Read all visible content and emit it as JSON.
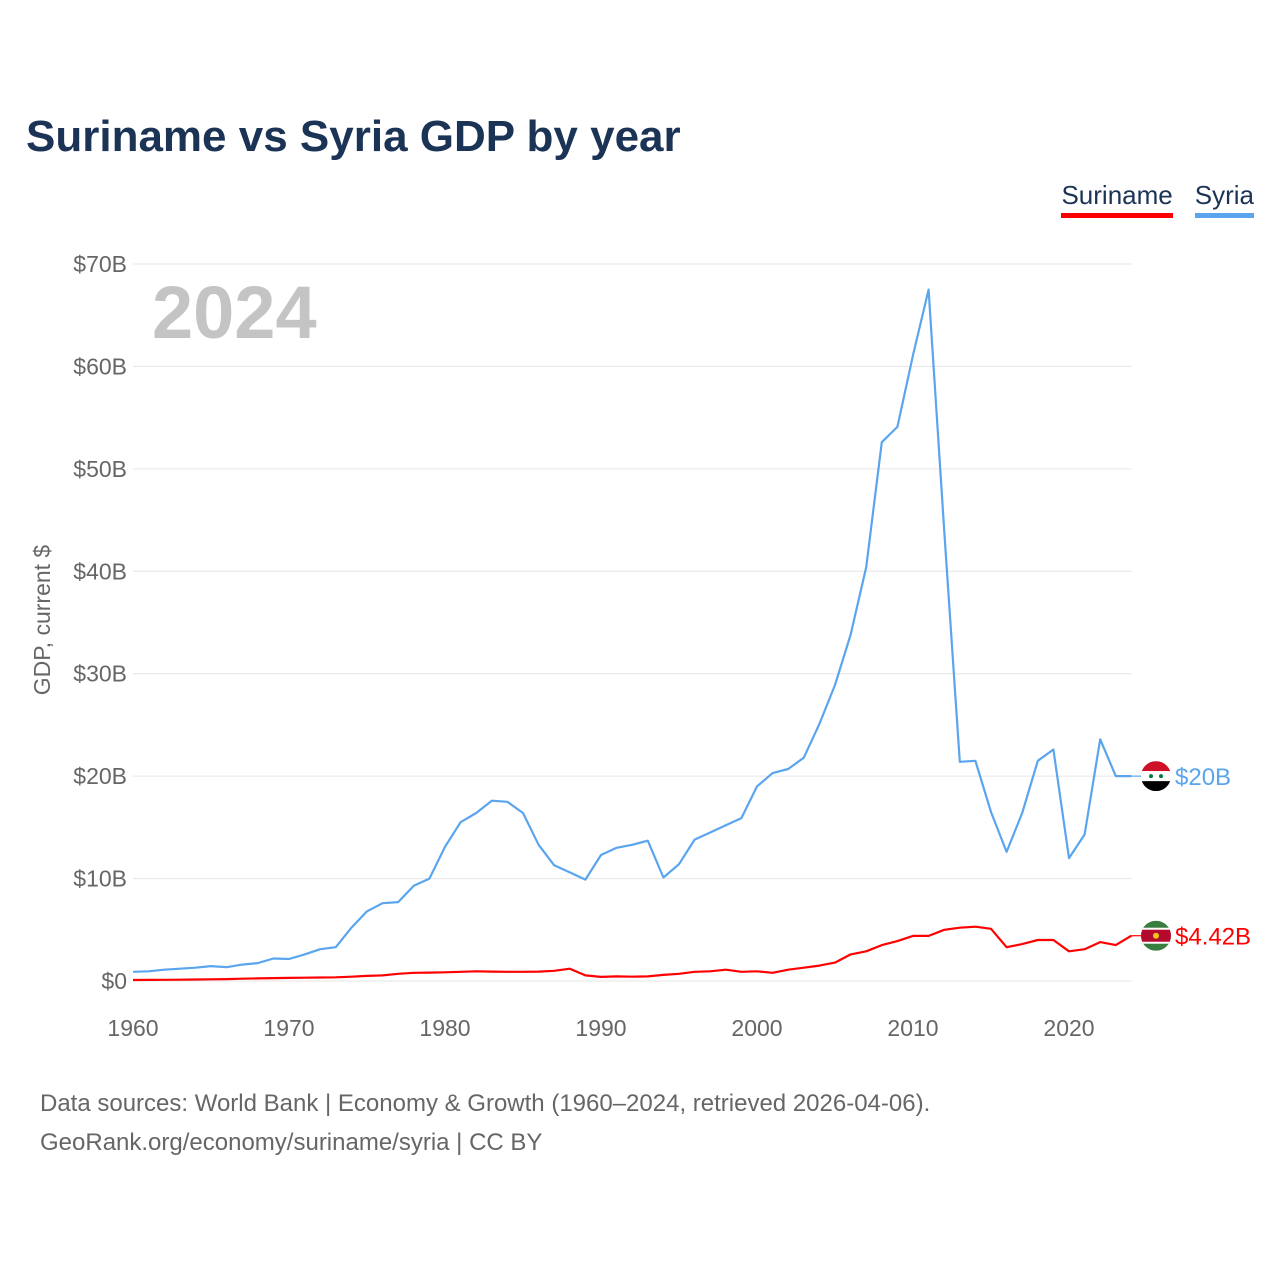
{
  "title": "Suriname vs Syria GDP by year",
  "legend": [
    {
      "label": "Suriname",
      "color": "#ff0000"
    },
    {
      "label": "Syria",
      "color": "#5aa5ee"
    }
  ],
  "footer": {
    "line1": "Data sources: World Bank | Economy & Growth (1960–2024, retrieved 2026-04-06).",
    "line2": "GeoRank.org/economy/suriname/syria | CC BY"
  },
  "chart_data": {
    "type": "line",
    "title": "Suriname vs Syria GDP by year",
    "ylabel": "GDP, current $",
    "xlabel": "",
    "year_watermark": "2024",
    "xlim": [
      1960,
      2024
    ],
    "ylim": [
      0,
      70
    ],
    "x_ticks": [
      "1960",
      "1970",
      "1980",
      "1990",
      "2000",
      "2010",
      "2020"
    ],
    "y_ticks": [
      "$0",
      "$10B",
      "$20B",
      "$30B",
      "$40B",
      "$50B",
      "$60B",
      "$70B"
    ],
    "grid": true,
    "x_start": 1960,
    "series": [
      {
        "name": "Syria",
        "color": "#5aa5ee",
        "end_label": "$20B",
        "flag": "syria",
        "values": [
          0.9,
          0.95,
          1.1,
          1.2,
          1.3,
          1.45,
          1.35,
          1.6,
          1.75,
          2.2,
          2.15,
          2.6,
          3.1,
          3.3,
          5.2,
          6.8,
          7.6,
          7.7,
          9.3,
          10.0,
          13.1,
          15.5,
          16.4,
          17.6,
          17.5,
          16.4,
          13.3,
          11.3,
          10.6,
          9.9,
          12.3,
          13.0,
          13.3,
          13.7,
          10.1,
          11.4,
          13.8,
          14.5,
          15.2,
          15.9,
          19.0,
          20.3,
          20.7,
          21.8,
          25.1,
          28.9,
          33.8,
          40.4,
          52.6,
          54.1,
          61.1,
          67.5,
          44.0,
          21.4,
          21.5,
          16.5,
          12.6,
          16.4,
          21.5,
          22.6,
          12.0,
          14.3,
          23.6,
          20.0,
          20.0
        ]
      },
      {
        "name": "Suriname",
        "color": "#ff0000",
        "end_label": "$4.42B",
        "flag": "suriname",
        "values": [
          0.1,
          0.11,
          0.12,
          0.13,
          0.15,
          0.17,
          0.19,
          0.22,
          0.25,
          0.28,
          0.3,
          0.32,
          0.34,
          0.36,
          0.42,
          0.5,
          0.55,
          0.7,
          0.8,
          0.82,
          0.85,
          0.9,
          0.95,
          0.92,
          0.9,
          0.9,
          0.92,
          1.0,
          1.2,
          0.55,
          0.4,
          0.45,
          0.42,
          0.45,
          0.6,
          0.7,
          0.9,
          0.95,
          1.1,
          0.9,
          0.95,
          0.8,
          1.1,
          1.3,
          1.5,
          1.8,
          2.6,
          2.9,
          3.5,
          3.9,
          4.4,
          4.4,
          5.0,
          5.2,
          5.3,
          5.1,
          3.3,
          3.6,
          4.0,
          4.0,
          2.9,
          3.1,
          3.8,
          3.5,
          4.42
        ]
      }
    ]
  }
}
